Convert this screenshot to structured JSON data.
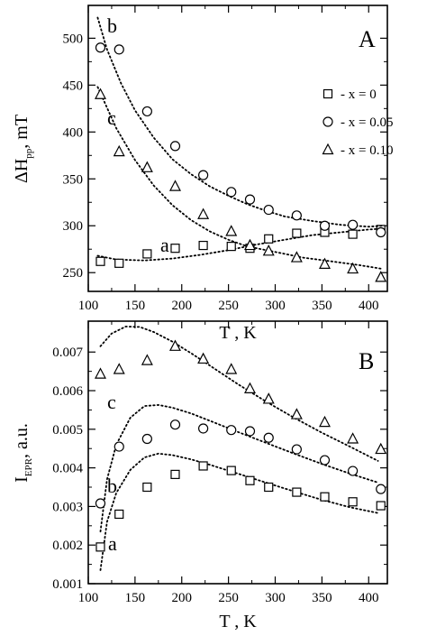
{
  "chart_data": [
    {
      "type": "scatter",
      "panel_label": "A",
      "ylabel_main": "ΔH",
      "ylabel_sub": "pp",
      "ylabel_unit": ", mT",
      "xlabel": "T , K",
      "xlim": [
        100,
        420
      ],
      "ylim": [
        230,
        535
      ],
      "xticks": [
        100,
        150,
        200,
        250,
        300,
        350,
        400
      ],
      "yticks": [
        250,
        300,
        350,
        400,
        450,
        500
      ],
      "legend_position": "upper-right",
      "series": [
        {
          "name": "- x = 0",
          "curve_label": "a",
          "marker": "square",
          "x": [
            113,
            133,
            163,
            193,
            223,
            253,
            273,
            293,
            323,
            353,
            383,
            413
          ],
          "y": [
            262,
            260,
            270,
            276,
            279,
            278,
            276,
            286,
            292,
            293,
            291,
            296
          ],
          "fit": [
            [
              110,
              268
            ],
            [
              130,
              264
            ],
            [
              160,
              263
            ],
            [
              190,
              265
            ],
            [
              220,
              269
            ],
            [
              250,
              274
            ],
            [
              280,
              280
            ],
            [
              310,
              285
            ],
            [
              340,
              290
            ],
            [
              370,
              293
            ],
            [
              400,
              296
            ],
            [
              415,
              297
            ]
          ]
        },
        {
          "name": "- x = 0.05",
          "curve_label": "b",
          "marker": "circle",
          "x": [
            113,
            133,
            163,
            193,
            223,
            253,
            273,
            293,
            323,
            353,
            383,
            413
          ],
          "y": [
            490,
            488,
            422,
            385,
            354,
            336,
            328,
            317,
            311,
            300,
            301,
            293
          ],
          "fit": [
            [
              110,
              522
            ],
            [
              120,
              488
            ],
            [
              135,
              452
            ],
            [
              150,
              423
            ],
            [
              170,
              394
            ],
            [
              190,
              371
            ],
            [
              210,
              355
            ],
            [
              230,
              342
            ],
            [
              250,
              332
            ],
            [
              270,
              323
            ],
            [
              290,
              316
            ],
            [
              310,
              310
            ],
            [
              340,
              305
            ],
            [
              370,
              301
            ],
            [
              400,
              299
            ],
            [
              415,
              300
            ]
          ]
        },
        {
          "name": "- x = 0.10",
          "curve_label": "c",
          "marker": "triangle",
          "x": [
            113,
            133,
            163,
            193,
            223,
            253,
            273,
            293,
            323,
            353,
            383,
            413
          ],
          "y": [
            440,
            379,
            362,
            342,
            312,
            294,
            279,
            273,
            266,
            259,
            254,
            245
          ],
          "fit": [
            [
              110,
              448
            ],
            [
              130,
              404
            ],
            [
              150,
              370
            ],
            [
              170,
              343
            ],
            [
              190,
              322
            ],
            [
              210,
              306
            ],
            [
              230,
              294
            ],
            [
              250,
              285
            ],
            [
              270,
              278
            ],
            [
              300,
              272
            ],
            [
              330,
              266
            ],
            [
              360,
              262
            ],
            [
              390,
              258
            ],
            [
              415,
              254
            ]
          ]
        }
      ]
    },
    {
      "type": "scatter",
      "panel_label": "B",
      "ylabel_main": "I",
      "ylabel_sub": "EPR",
      "ylabel_unit": ", a.u.",
      "xlabel": "T , K",
      "xlim": [
        100,
        420
      ],
      "ylim": [
        0.001,
        0.0078
      ],
      "xticks": [
        100,
        150,
        200,
        250,
        300,
        350,
        400
      ],
      "yticks": [
        0.001,
        0.002,
        0.003,
        0.004,
        0.005,
        0.006,
        0.007
      ],
      "ytick_labels": [
        "0.001",
        "0.002",
        "0.003",
        "0.004",
        "0.005",
        "0.006",
        "0.007"
      ],
      "series": [
        {
          "curve_label": "a",
          "marker": "square",
          "x": [
            113,
            133,
            163,
            193,
            223,
            253,
            273,
            293,
            323,
            353,
            383,
            413
          ],
          "y": [
            0.00195,
            0.0028,
            0.0035,
            0.00383,
            0.00405,
            0.00393,
            0.00367,
            0.0035,
            0.00337,
            0.00325,
            0.00312,
            0.00302
          ],
          "fit": [
            [
              113,
              0.00135
            ],
            [
              120,
              0.0026
            ],
            [
              130,
              0.00335
            ],
            [
              145,
              0.00395
            ],
            [
              160,
              0.00427
            ],
            [
              175,
              0.00437
            ],
            [
              190,
              0.00433
            ],
            [
              210,
              0.00422
            ],
            [
              230,
              0.00408
            ],
            [
              260,
              0.00385
            ],
            [
              290,
              0.00362
            ],
            [
              320,
              0.00339
            ],
            [
              350,
              0.00317
            ],
            [
              380,
              0.00298
            ],
            [
              410,
              0.00283
            ]
          ]
        },
        {
          "curve_label": "b",
          "marker": "circle",
          "x": [
            113,
            133,
            163,
            193,
            223,
            253,
            273,
            293,
            323,
            353,
            383,
            413
          ],
          "y": [
            0.00308,
            0.00455,
            0.00475,
            0.00512,
            0.00502,
            0.00498,
            0.00495,
            0.00478,
            0.00448,
            0.0042,
            0.00392,
            0.00345
          ],
          "fit": [
            [
              113,
              0.00235
            ],
            [
              120,
              0.0037
            ],
            [
              130,
              0.0046
            ],
            [
              145,
              0.0053
            ],
            [
              160,
              0.0056
            ],
            [
              175,
              0.00563
            ],
            [
              190,
              0.00556
            ],
            [
              210,
              0.00541
            ],
            [
              230,
              0.00522
            ],
            [
              260,
              0.00493
            ],
            [
              290,
              0.00465
            ],
            [
              320,
              0.00437
            ],
            [
              350,
              0.0041
            ],
            [
              380,
              0.00385
            ],
            [
              410,
              0.00362
            ]
          ]
        },
        {
          "curve_label": "c",
          "marker": "triangle",
          "x": [
            113,
            133,
            163,
            193,
            223,
            253,
            273,
            293,
            323,
            353,
            383,
            413
          ],
          "y": [
            0.00643,
            0.00655,
            0.00678,
            0.00715,
            0.00682,
            0.00655,
            0.00605,
            0.00578,
            0.00538,
            0.00518,
            0.00475,
            0.00448
          ],
          "fit": [
            [
              113,
              0.00715
            ],
            [
              125,
              0.00748
            ],
            [
              140,
              0.00766
            ],
            [
              155,
              0.00765
            ],
            [
              170,
              0.00752
            ],
            [
              190,
              0.00727
            ],
            [
              210,
              0.00697
            ],
            [
              230,
              0.00665
            ],
            [
              260,
              0.00617
            ],
            [
              290,
              0.00572
            ],
            [
              320,
              0.0053
            ],
            [
              350,
              0.00491
            ],
            [
              380,
              0.00455
            ],
            [
              410,
              0.00418
            ]
          ]
        }
      ]
    }
  ]
}
